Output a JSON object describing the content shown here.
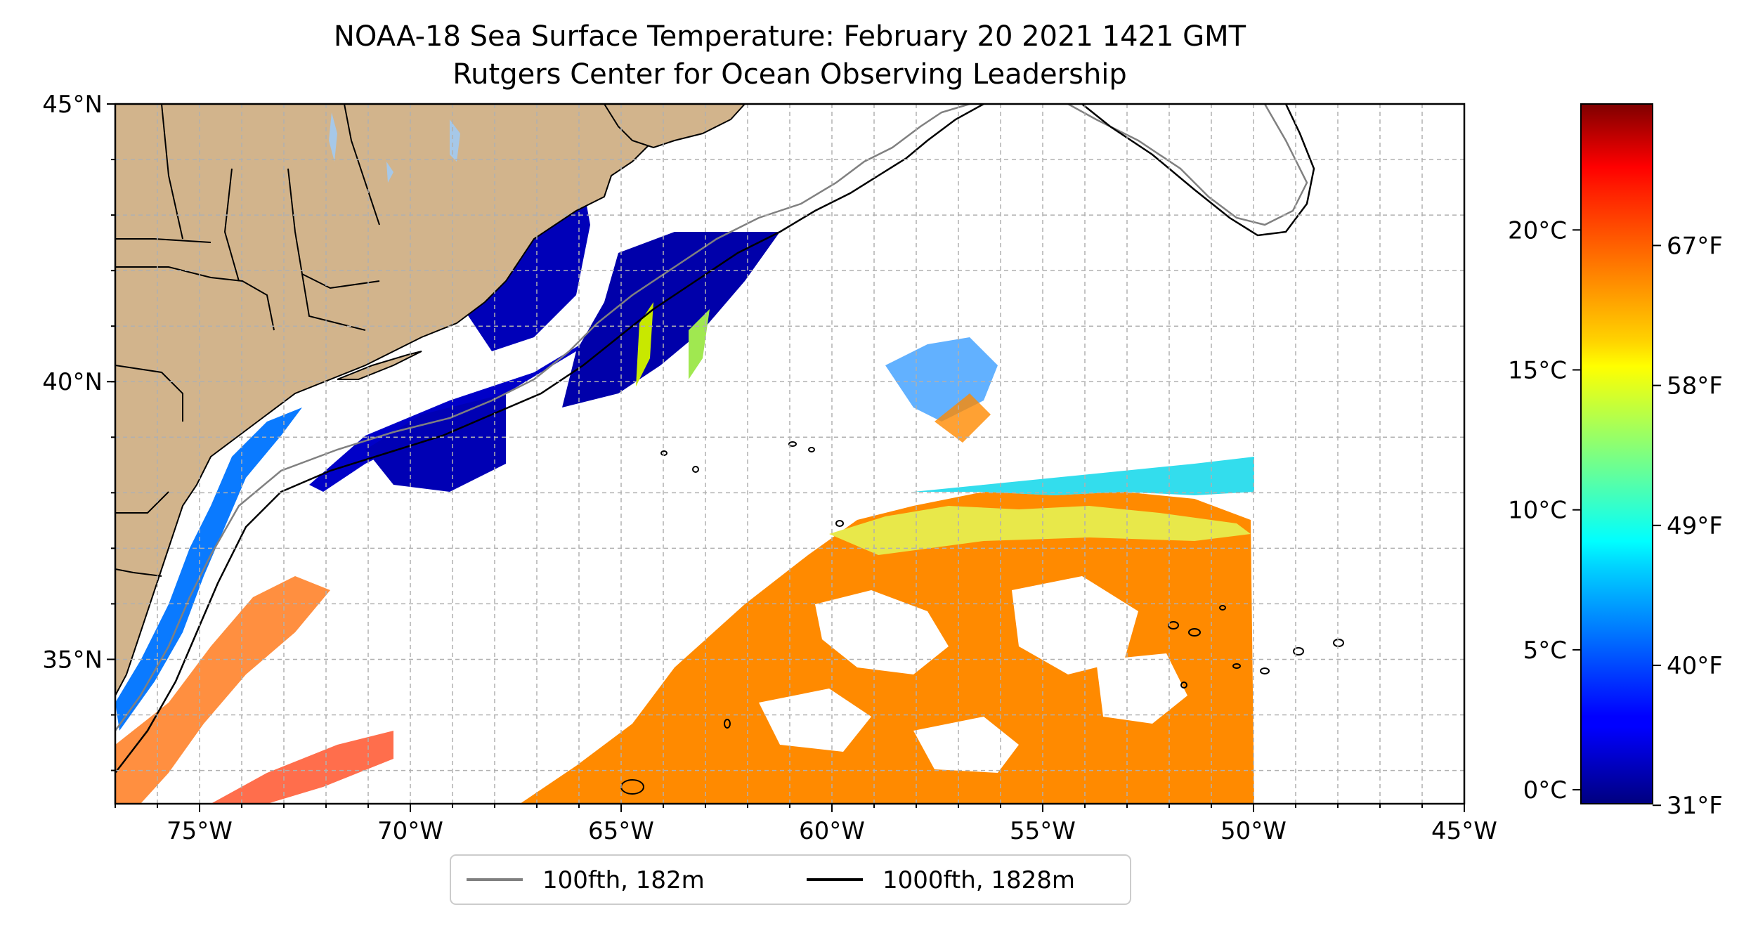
{
  "title": {
    "line1": "NOAA-18 Sea Surface Temperature: February 20 2021 1421 GMT",
    "line2": "Rutgers Center for Ocean Observing Leadership"
  },
  "map": {
    "lon_range": [
      -77,
      -45
    ],
    "lat_range": [
      32.4,
      45
    ],
    "lon_ticks": [
      {
        "value": -75,
        "label": "75°W"
      },
      {
        "value": -70,
        "label": "70°W"
      },
      {
        "value": -65,
        "label": "65°W"
      },
      {
        "value": -60,
        "label": "60°W"
      },
      {
        "value": -55,
        "label": "55°W"
      },
      {
        "value": -50,
        "label": "50°W"
      },
      {
        "value": -45,
        "label": "45°W"
      }
    ],
    "lat_ticks": [
      {
        "value": 45,
        "label": "45°N"
      },
      {
        "value": 40,
        "label": "40°N"
      },
      {
        "value": 35,
        "label": "35°N"
      }
    ],
    "gridlines": true,
    "land_color": "#d2b48c",
    "lake_color": "#a6c8e8",
    "ocean_color": "#ffffff"
  },
  "legend": {
    "placement": "bottom-center",
    "items": [
      {
        "label": "100fth, 182m",
        "color": "#808080"
      },
      {
        "label": "1000fth, 1828m",
        "color": "#000000"
      }
    ]
  },
  "colorbar": {
    "colormap": "jet",
    "celsius_ticks": [
      {
        "value": 0,
        "label": "0°C"
      },
      {
        "value": 5,
        "label": "5°C"
      },
      {
        "value": 10,
        "label": "10°C"
      },
      {
        "value": 15,
        "label": "15°C"
      },
      {
        "value": 20,
        "label": "20°C"
      }
    ],
    "fahrenheit_ticks": [
      {
        "value": 31,
        "label": "31°F"
      },
      {
        "value": 40,
        "label": "40°F"
      },
      {
        "value": 49,
        "label": "49°F"
      },
      {
        "value": 58,
        "label": "58°F"
      },
      {
        "value": 67,
        "label": "67°F"
      }
    ],
    "range_celsius": [
      -0.5,
      24.5
    ]
  }
}
